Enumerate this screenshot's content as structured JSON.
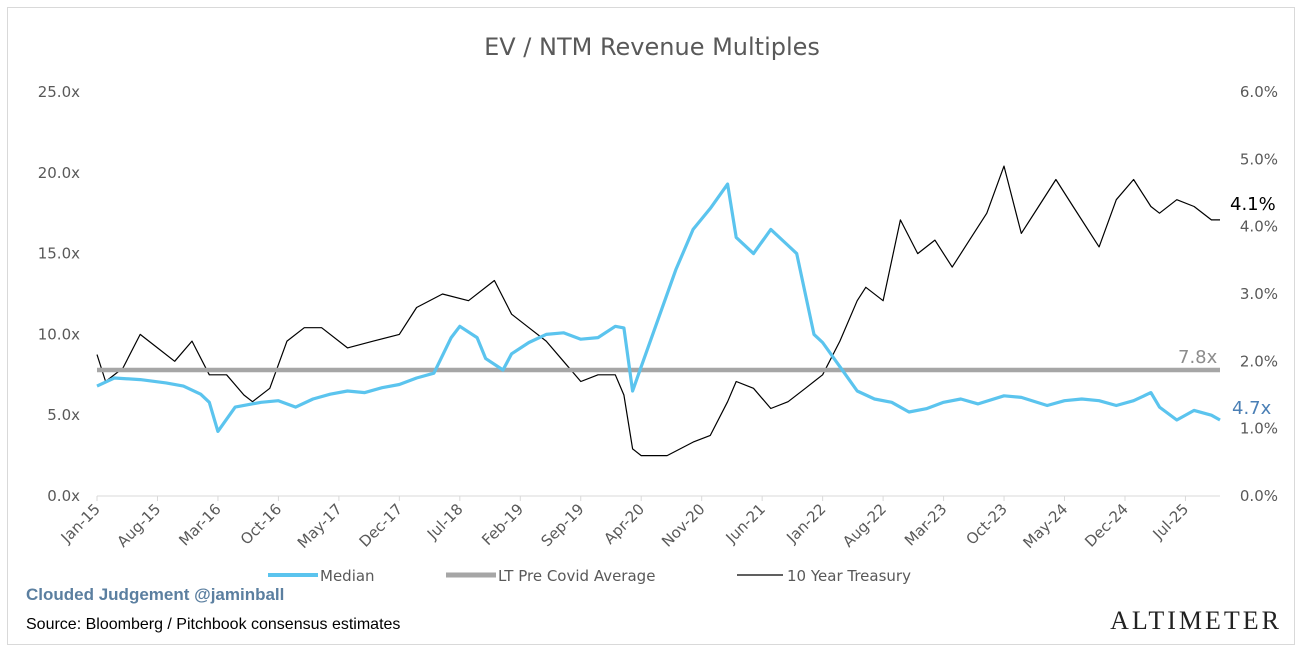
{
  "chart_data": {
    "type": "line",
    "title": "EV / NTM Revenue Multiples",
    "x_tick_labels": [
      "Jan-15",
      "Aug-15",
      "Mar-16",
      "Oct-16",
      "May-17",
      "Dec-17",
      "Jul-18",
      "Feb-19",
      "Sep-19",
      "Apr-20",
      "Nov-20",
      "Jun-21",
      "Jan-22",
      "Aug-22",
      "Mar-23",
      "Oct-23",
      "May-24",
      "Dec-24",
      "Jul-25"
    ],
    "x_range": [
      "Jan-15",
      "Nov-25"
    ],
    "y_left": {
      "ticks": [
        "0.0x",
        "5.0x",
        "10.0x",
        "15.0x",
        "20.0x",
        "25.0x"
      ],
      "ylim": [
        0,
        25
      ]
    },
    "y_right": {
      "ticks": [
        "0.0%",
        "1.0%",
        "2.0%",
        "3.0%",
        "4.0%",
        "5.0%",
        "6.0%"
      ],
      "ylim": [
        0,
        6
      ]
    },
    "grid": false,
    "legend_position": "bottom",
    "series": [
      {
        "name": "Median",
        "axis": "left",
        "color": "#5bc4ee",
        "x": [
          "Jan-15",
          "Mar-15",
          "Jun-15",
          "Sep-15",
          "Nov-15",
          "Jan-16",
          "Feb-16",
          "Mar-16",
          "May-16",
          "Aug-16",
          "Oct-16",
          "Dec-16",
          "Feb-17",
          "Apr-17",
          "Jun-17",
          "Aug-17",
          "Oct-17",
          "Dec-17",
          "Feb-18",
          "Apr-18",
          "Jun-18",
          "Jul-18",
          "Sep-18",
          "Oct-18",
          "Dec-18",
          "Jan-19",
          "Mar-19",
          "May-19",
          "Jul-19",
          "Sep-19",
          "Nov-19",
          "Jan-20",
          "Feb-20",
          "Mar-20",
          "Apr-20",
          "Jun-20",
          "Aug-20",
          "Oct-20",
          "Dec-20",
          "Feb-21",
          "Mar-21",
          "May-21",
          "Jul-21",
          "Sep-21",
          "Oct-21",
          "Dec-21",
          "Jan-22",
          "Mar-22",
          "May-22",
          "Jul-22",
          "Sep-22",
          "Nov-22",
          "Jan-23",
          "Mar-23",
          "May-23",
          "Jul-23",
          "Oct-23",
          "Dec-23",
          "Mar-24",
          "May-24",
          "Jul-24",
          "Sep-24",
          "Nov-24",
          "Jan-25",
          "Mar-25",
          "Apr-25",
          "Jun-25",
          "Aug-25",
          "Oct-25",
          "Nov-25"
        ],
        "values": [
          6.8,
          7.3,
          7.2,
          7.0,
          6.8,
          6.3,
          5.8,
          4.0,
          5.5,
          5.8,
          5.9,
          5.5,
          6.0,
          6.3,
          6.5,
          6.4,
          6.7,
          6.9,
          7.3,
          7.6,
          9.8,
          10.5,
          9.8,
          8.5,
          7.8,
          8.8,
          9.5,
          10.0,
          10.1,
          9.7,
          9.8,
          10.5,
          10.4,
          6.5,
          8.0,
          11.0,
          14.0,
          16.5,
          17.8,
          19.3,
          16.0,
          15.0,
          16.5,
          15.5,
          15.0,
          10.0,
          9.5,
          8.0,
          6.5,
          6.0,
          5.8,
          5.2,
          5.4,
          5.8,
          6.0,
          5.7,
          6.2,
          6.1,
          5.6,
          5.9,
          6.0,
          5.9,
          5.6,
          5.9,
          6.4,
          5.5,
          4.7,
          5.3,
          5.0,
          4.7
        ]
      },
      {
        "name": "LT Pre Covid Average",
        "axis": "left",
        "color": "#a6a6a6",
        "x": [
          "Jan-15",
          "Nov-25"
        ],
        "values": [
          7.8,
          7.8
        ]
      },
      {
        "name": "10 Year Treasury",
        "axis": "right",
        "color": "#000000",
        "x": [
          "Jan-15",
          "Feb-15",
          "Apr-15",
          "Jun-15",
          "Aug-15",
          "Oct-15",
          "Dec-15",
          "Feb-16",
          "Apr-16",
          "Jun-16",
          "Jul-16",
          "Sep-16",
          "Nov-16",
          "Jan-17",
          "Mar-17",
          "Jun-17",
          "Sep-17",
          "Dec-17",
          "Feb-18",
          "May-18",
          "Aug-18",
          "Nov-18",
          "Jan-19",
          "Mar-19",
          "May-19",
          "Jul-19",
          "Sep-19",
          "Nov-19",
          "Jan-20",
          "Feb-20",
          "Mar-20",
          "Apr-20",
          "Jul-20",
          "Oct-20",
          "Dec-20",
          "Feb-21",
          "Mar-21",
          "May-21",
          "Jul-21",
          "Sep-21",
          "Nov-21",
          "Jan-22",
          "Mar-22",
          "May-22",
          "Jun-22",
          "Aug-22",
          "Oct-22",
          "Dec-22",
          "Feb-23",
          "Apr-23",
          "Jun-23",
          "Aug-23",
          "Oct-23",
          "Dec-23",
          "Feb-24",
          "Apr-24",
          "Jun-24",
          "Sep-24",
          "Nov-24",
          "Jan-25",
          "Mar-25",
          "Apr-25",
          "Jun-25",
          "Aug-25",
          "Oct-25",
          "Nov-25"
        ],
        "values": [
          2.1,
          1.7,
          1.9,
          2.4,
          2.2,
          2.0,
          2.3,
          1.8,
          1.8,
          1.5,
          1.4,
          1.6,
          2.3,
          2.5,
          2.5,
          2.2,
          2.3,
          2.4,
          2.8,
          3.0,
          2.9,
          3.2,
          2.7,
          2.5,
          2.3,
          2.0,
          1.7,
          1.8,
          1.8,
          1.5,
          0.7,
          0.6,
          0.6,
          0.8,
          0.9,
          1.4,
          1.7,
          1.6,
          1.3,
          1.4,
          1.6,
          1.8,
          2.3,
          2.9,
          3.1,
          2.9,
          4.1,
          3.6,
          3.8,
          3.4,
          3.8,
          4.2,
          4.9,
          3.9,
          4.3,
          4.7,
          4.3,
          3.7,
          4.4,
          4.7,
          4.3,
          4.2,
          4.4,
          4.3,
          4.1,
          4.1
        ]
      }
    ],
    "end_labels": {
      "treasury": "4.1%",
      "average": "7.8x",
      "median": "4.7x"
    }
  },
  "footer": {
    "watermark": "Clouded Judgement @jaminball",
    "source": "Source: Bloomberg / Pitchbook consensus estimates",
    "logo": "ALTIMETER"
  }
}
